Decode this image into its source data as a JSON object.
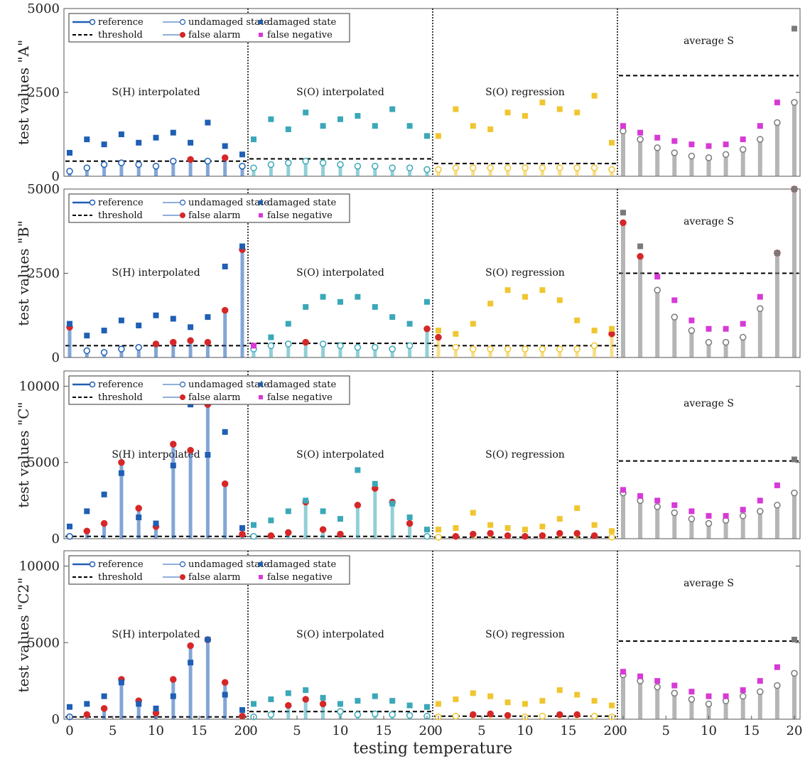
{
  "figure": {
    "xlabel": "testing temperature"
  },
  "chart_data": [
    {
      "type": "scatter",
      "ylabel": "test values \"A\"",
      "ylim": [
        0,
        5000
      ],
      "y_ticks": [
        0,
        2500,
        5000
      ],
      "segment_labels": [
        "S(H) interpolated",
        "S(O) interpolated",
        "S(O) regression",
        "average S"
      ],
      "legend": [
        "reference",
        "undamaged state",
        "damaged state",
        "threshold",
        "false alarm",
        "false negative"
      ],
      "threshold": [
        450,
        520,
        380,
        3000
      ],
      "damaged": [
        {
          "segment": "S(H) interpolated",
          "x": [
            0,
            2,
            4,
            6,
            8,
            10,
            12,
            14,
            16,
            18,
            20
          ],
          "y": [
            700,
            1100,
            950,
            1250,
            1000,
            1150,
            1300,
            1000,
            1600,
            900,
            650
          ]
        },
        {
          "segment": "S(O) interpolated",
          "x": [
            0,
            2,
            4,
            6,
            8,
            10,
            12,
            14,
            16,
            18,
            20
          ],
          "y": [
            1100,
            1700,
            1400,
            1900,
            1500,
            1700,
            1800,
            1500,
            2000,
            1500,
            1200
          ]
        },
        {
          "segment": "S(O) regression",
          "x": [
            0,
            2,
            4,
            6,
            8,
            10,
            12,
            14,
            16,
            18,
            20
          ],
          "y": [
            1200,
            2000,
            1500,
            1400,
            1900,
            1800,
            2200,
            2000,
            1900,
            2400,
            1000
          ]
        },
        {
          "segment": "average S",
          "x": [
            0,
            2,
            4,
            6,
            8,
            10,
            12,
            14,
            16,
            18,
            20
          ],
          "y": [
            1500,
            1300,
            1150,
            1050,
            950,
            900,
            950,
            1100,
            1500,
            2200,
            4400
          ]
        }
      ],
      "undamaged": [
        {
          "segment": "S(H) interpolated",
          "x": [
            0,
            2,
            4,
            6,
            8,
            10,
            12,
            14,
            16,
            18,
            20
          ],
          "y": [
            150,
            250,
            350,
            400,
            350,
            300,
            450,
            500,
            450,
            550,
            300
          ]
        },
        {
          "segment": "S(O) interpolated",
          "x": [
            0,
            2,
            4,
            6,
            8,
            10,
            12,
            14,
            16,
            18,
            20
          ],
          "y": [
            250,
            350,
            400,
            450,
            400,
            350,
            300,
            300,
            250,
            250,
            200
          ]
        },
        {
          "segment": "S(O) regression",
          "x": [
            0,
            2,
            4,
            6,
            8,
            10,
            12,
            14,
            16,
            18,
            20
          ],
          "y": [
            200,
            250,
            250,
            250,
            250,
            250,
            250,
            250,
            250,
            250,
            200
          ]
        },
        {
          "segment": "average S",
          "x": [
            0,
            2,
            4,
            6,
            8,
            10,
            12,
            14,
            16,
            18,
            20
          ],
          "y": [
            1350,
            1100,
            850,
            700,
            600,
            550,
            650,
            800,
            1100,
            1600,
            2200
          ]
        }
      ]
    },
    {
      "type": "scatter",
      "ylabel": "test values \"B\"",
      "ylim": [
        0,
        5000
      ],
      "y_ticks": [
        0,
        2500,
        5000
      ],
      "segment_labels": [
        "S(H) interpolated",
        "S(O) interpolated",
        "S(O) regression",
        "average S"
      ],
      "legend": [
        "reference",
        "undamaged state",
        "damaged state",
        "threshold",
        "false alarm",
        "false negative"
      ],
      "threshold": [
        350,
        420,
        350,
        2500
      ],
      "damaged": [
        {
          "segment": "S(H) interpolated",
          "x": [
            0,
            2,
            4,
            6,
            8,
            10,
            12,
            14,
            16,
            18,
            20
          ],
          "y": [
            1000,
            650,
            800,
            1100,
            950,
            1250,
            1150,
            900,
            1200,
            2700,
            3300
          ]
        },
        {
          "segment": "S(O) interpolated",
          "x": [
            0,
            2,
            4,
            6,
            8,
            10,
            12,
            14,
            16,
            18,
            20
          ],
          "y": [
            350,
            600,
            1000,
            1500,
            1800,
            1650,
            1800,
            1500,
            1200,
            1000,
            1650
          ]
        },
        {
          "segment": "S(O) regression",
          "x": [
            0,
            2,
            4,
            6,
            8,
            10,
            12,
            14,
            16,
            18,
            20
          ],
          "y": [
            800,
            700,
            1000,
            1600,
            2000,
            1800,
            2000,
            1700,
            1100,
            800,
            850
          ]
        },
        {
          "segment": "average S",
          "x": [
            0,
            2,
            4,
            6,
            8,
            10,
            12,
            14,
            16,
            18,
            20
          ],
          "y": [
            4300,
            3300,
            2400,
            1700,
            1100,
            850,
            850,
            1000,
            1800,
            3100,
            5000
          ]
        }
      ],
      "undamaged": [
        {
          "segment": "S(H) interpolated",
          "x": [
            0,
            2,
            4,
            6,
            8,
            10,
            12,
            14,
            16,
            18,
            20
          ],
          "y": [
            900,
            200,
            150,
            250,
            300,
            400,
            450,
            500,
            450,
            1400,
            3200
          ]
        },
        {
          "segment": "S(O) interpolated",
          "x": [
            0,
            2,
            4,
            6,
            8,
            10,
            12,
            14,
            16,
            18,
            20
          ],
          "y": [
            250,
            350,
            400,
            450,
            400,
            350,
            300,
            300,
            250,
            350,
            850
          ]
        },
        {
          "segment": "S(O) regression",
          "x": [
            0,
            2,
            4,
            6,
            8,
            10,
            12,
            14,
            16,
            18,
            20
          ],
          "y": [
            600,
            300,
            250,
            250,
            250,
            250,
            250,
            250,
            250,
            350,
            700
          ]
        },
        {
          "segment": "average S",
          "x": [
            0,
            2,
            4,
            6,
            8,
            10,
            12,
            14,
            16,
            18,
            20
          ],
          "y": [
            4000,
            3000,
            2000,
            1200,
            800,
            450,
            450,
            600,
            1450,
            3100,
            5000
          ]
        }
      ]
    },
    {
      "type": "scatter",
      "ylabel": "test values \"C\"",
      "ylim": [
        0,
        11000
      ],
      "y_ticks": [
        0,
        5000,
        10000
      ],
      "segment_labels": [
        "S(H) interpolated",
        "S(O) interpolated",
        "S(O) regression",
        "average S"
      ],
      "legend": [
        "reference",
        "undamaged state",
        "damaged state",
        "threshold",
        "false alarm",
        "false negative"
      ],
      "threshold": [
        150,
        150,
        100,
        5100
      ],
      "damaged": [
        {
          "segment": "S(H) interpolated",
          "x": [
            0,
            2,
            4,
            6,
            8,
            10,
            12,
            14,
            16,
            18,
            20
          ],
          "y": [
            800,
            1800,
            2900,
            4300,
            1400,
            1000,
            4800,
            8800,
            5500,
            7000,
            700
          ]
        },
        {
          "segment": "S(O) interpolated",
          "x": [
            0,
            2,
            4,
            6,
            8,
            10,
            12,
            14,
            16,
            18,
            20
          ],
          "y": [
            900,
            1200,
            1800,
            2500,
            1800,
            1300,
            4500,
            3600,
            2300,
            1400,
            600
          ]
        },
        {
          "segment": "S(O) regression",
          "x": [
            0,
            2,
            4,
            6,
            8,
            10,
            12,
            14,
            16,
            18,
            20
          ],
          "y": [
            600,
            700,
            1700,
            900,
            700,
            600,
            800,
            1300,
            2000,
            900,
            500
          ]
        },
        {
          "segment": "average S",
          "x": [
            0,
            2,
            4,
            6,
            8,
            10,
            12,
            14,
            16,
            18,
            20
          ],
          "y": [
            3200,
            2800,
            2500,
            2200,
            1800,
            1500,
            1500,
            1900,
            2500,
            3500,
            5200
          ]
        }
      ],
      "undamaged": [
        {
          "segment": "S(H) interpolated",
          "x": [
            0,
            2,
            4,
            6,
            8,
            10,
            12,
            14,
            16,
            18,
            20
          ],
          "y": [
            150,
            500,
            1000,
            5000,
            2000,
            800,
            6200,
            5800,
            8800,
            3600,
            300
          ]
        },
        {
          "segment": "S(O) interpolated",
          "x": [
            0,
            2,
            4,
            6,
            8,
            10,
            12,
            14,
            16,
            18,
            20
          ],
          "y": [
            150,
            200,
            400,
            2400,
            600,
            300,
            2200,
            3300,
            2400,
            1000,
            150
          ]
        },
        {
          "segment": "S(O) regression",
          "x": [
            0,
            2,
            4,
            6,
            8,
            10,
            12,
            14,
            16,
            18,
            20
          ],
          "y": [
            100,
            150,
            300,
            350,
            200,
            150,
            200,
            350,
            350,
            200,
            100
          ]
        },
        {
          "segment": "average S",
          "x": [
            0,
            2,
            4,
            6,
            8,
            10,
            12,
            14,
            16,
            18,
            20
          ],
          "y": [
            3000,
            2500,
            2100,
            1700,
            1300,
            1000,
            1200,
            1500,
            1800,
            2200,
            3000
          ]
        }
      ]
    },
    {
      "type": "scatter",
      "ylabel": "test values \"C2\"",
      "ylim": [
        0,
        11000
      ],
      "y_ticks": [
        0,
        5000,
        10000
      ],
      "segment_labels": [
        "S(H) interpolated",
        "S(O) interpolated",
        "S(O) regression",
        "average S"
      ],
      "legend": [
        "reference",
        "undamaged state",
        "damaged state",
        "threshold",
        "false alarm",
        "false negative"
      ],
      "threshold": [
        150,
        500,
        200,
        5100
      ],
      "damaged": [
        {
          "segment": "S(H) interpolated",
          "x": [
            0,
            2,
            4,
            6,
            8,
            10,
            12,
            14,
            16,
            18,
            20
          ],
          "y": [
            800,
            1000,
            1500,
            2400,
            1000,
            700,
            1500,
            3700,
            5200,
            1600,
            600
          ]
        },
        {
          "segment": "S(O) interpolated",
          "x": [
            0,
            2,
            4,
            6,
            8,
            10,
            12,
            14,
            16,
            18,
            20
          ],
          "y": [
            1000,
            1300,
            1700,
            1900,
            1400,
            1000,
            1200,
            1500,
            1200,
            900,
            800
          ]
        },
        {
          "segment": "S(O) regression",
          "x": [
            0,
            2,
            4,
            6,
            8,
            10,
            12,
            14,
            16,
            18,
            20
          ],
          "y": [
            1000,
            1300,
            1700,
            1500,
            1100,
            1000,
            1200,
            1900,
            1600,
            1200,
            900
          ]
        },
        {
          "segment": "average S",
          "x": [
            0,
            2,
            4,
            6,
            8,
            10,
            12,
            14,
            16,
            18,
            20
          ],
          "y": [
            3100,
            2800,
            2500,
            2200,
            1800,
            1500,
            1500,
            1900,
            2500,
            3400,
            5200
          ]
        }
      ],
      "undamaged": [
        {
          "segment": "S(H) interpolated",
          "x": [
            0,
            2,
            4,
            6,
            8,
            10,
            12,
            14,
            16,
            18,
            20
          ],
          "y": [
            150,
            300,
            700,
            2600,
            1200,
            400,
            2600,
            4800,
            5200,
            2400,
            200
          ]
        },
        {
          "segment": "S(O) interpolated",
          "x": [
            0,
            2,
            4,
            6,
            8,
            10,
            12,
            14,
            16,
            18,
            20
          ],
          "y": [
            150,
            300,
            900,
            1300,
            1000,
            500,
            300,
            350,
            300,
            250,
            200
          ]
        },
        {
          "segment": "S(O) regression",
          "x": [
            0,
            2,
            4,
            6,
            8,
            10,
            12,
            14,
            16,
            18,
            20
          ],
          "y": [
            150,
            200,
            300,
            350,
            250,
            150,
            200,
            300,
            300,
            200,
            150
          ]
        },
        {
          "segment": "average S",
          "x": [
            0,
            2,
            4,
            6,
            8,
            10,
            12,
            14,
            16,
            18,
            20
          ],
          "y": [
            2900,
            2500,
            2100,
            1700,
            1300,
            1000,
            1200,
            1500,
            1800,
            2200,
            3000
          ]
        }
      ]
    }
  ],
  "x_tick_labels": [
    "0",
    "5",
    "10",
    "15",
    "20"
  ],
  "colors": {
    "segment1": "#1f5fb4",
    "segment2": "#3aa8b8",
    "segment3": "#f0c630",
    "segment4": "#7a7a7a",
    "false_alarm": "#d62728",
    "false_negative": "#d63ad6",
    "threshold": "#000000"
  }
}
